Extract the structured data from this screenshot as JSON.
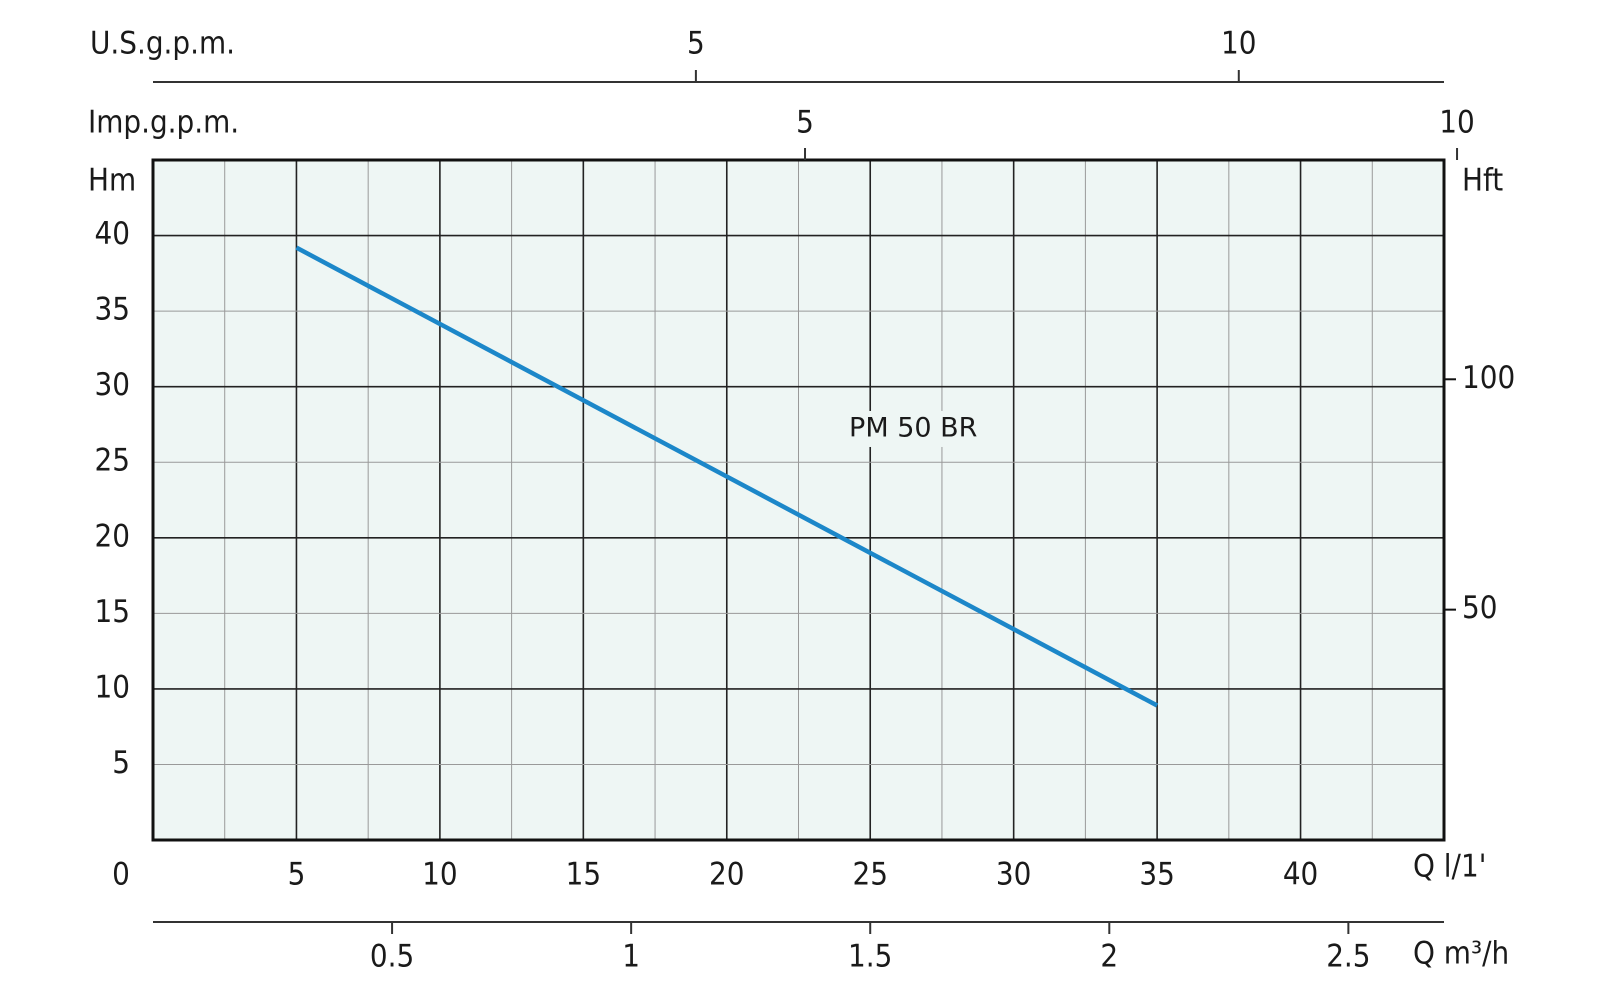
{
  "chart_data": {
    "type": "line",
    "x_label": "Q l/1'",
    "y_label": "Hm",
    "y2_label": "Hft",
    "xlim": [
      0,
      45
    ],
    "xticks": [
      0,
      5,
      10,
      15,
      20,
      25,
      30,
      35,
      40
    ],
    "ylim": [
      0,
      45
    ],
    "yticks": [
      5,
      10,
      15,
      20,
      25,
      30,
      35,
      40
    ],
    "y2lim": [
      0,
      147.6
    ],
    "y2ticks": [
      50,
      100
    ],
    "grid": true,
    "series": [
      {
        "name": "PM 50 BR",
        "color": "#1c87c9",
        "x": [
          5,
          35
        ],
        "values": [
          39.2,
          8.9
        ]
      }
    ],
    "us_gpm_axis": {
      "label": "U.S.g.p.m.",
      "lim": [
        0,
        11.89
      ],
      "ticks": [
        5,
        10
      ]
    },
    "imp_gpm_axis": {
      "label": "Imp.g.p.m.",
      "lim": [
        0,
        9.9
      ],
      "ticks": [
        5,
        10
      ]
    },
    "m3h_axis": {
      "label": "Q m³/h",
      "lim": [
        0,
        2.7
      ],
      "ticks": [
        0.5,
        1,
        1.5,
        2,
        2.5
      ]
    }
  }
}
